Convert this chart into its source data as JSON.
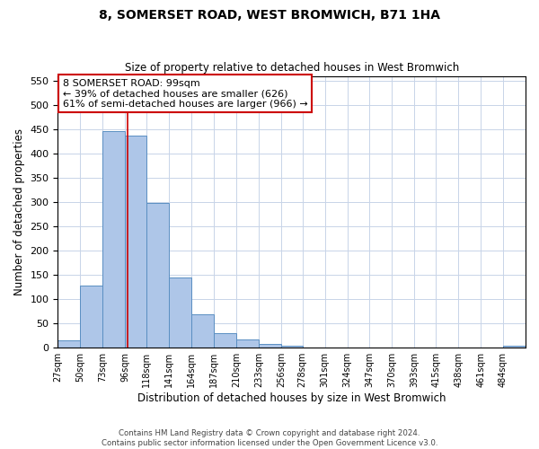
{
  "title": "8, SOMERSET ROAD, WEST BROMWICH, B71 1HA",
  "subtitle": "Size of property relative to detached houses in West Bromwich",
  "xlabel": "Distribution of detached houses by size in West Bromwich",
  "ylabel": "Number of detached properties",
  "bin_labels": [
    "27sqm",
    "50sqm",
    "73sqm",
    "96sqm",
    "118sqm",
    "141sqm",
    "164sqm",
    "187sqm",
    "210sqm",
    "233sqm",
    "256sqm",
    "278sqm",
    "301sqm",
    "324sqm",
    "347sqm",
    "370sqm",
    "393sqm",
    "415sqm",
    "438sqm",
    "461sqm",
    "484sqm"
  ],
  "bar_heights": [
    15,
    128,
    447,
    437,
    298,
    145,
    68,
    30,
    17,
    8,
    5,
    1,
    1,
    0,
    0,
    0,
    0,
    0,
    0,
    0,
    5
  ],
  "bar_color": "#aec6e8",
  "bar_edge_color": "#5a8fc2",
  "annotation_text": "8 SOMERSET ROAD: 99sqm\n← 39% of detached houses are smaller (626)\n61% of semi-detached houses are larger (966) →",
  "annotation_box_color": "#ffffff",
  "annotation_box_edge_color": "#cc0000",
  "property_line_x": 99,
  "property_line_color": "#cc0000",
  "footnote": "Contains HM Land Registry data © Crown copyright and database right 2024.\nContains public sector information licensed under the Open Government Licence v3.0.",
  "ylim": [
    0,
    560
  ],
  "yticks": [
    0,
    50,
    100,
    150,
    200,
    250,
    300,
    350,
    400,
    450,
    500,
    550
  ],
  "bin_edges_sqm": [
    27,
    50,
    73,
    96,
    118,
    141,
    164,
    187,
    210,
    233,
    256,
    278,
    301,
    324,
    347,
    370,
    393,
    415,
    438,
    461,
    484,
    507
  ]
}
